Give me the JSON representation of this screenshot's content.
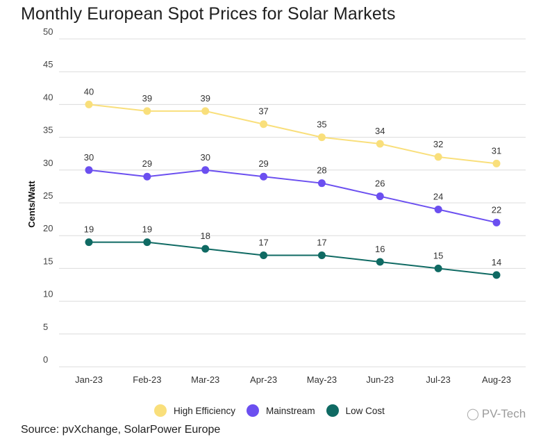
{
  "chart_data": {
    "type": "line",
    "title": "Monthly European Spot Prices for Solar Markets",
    "ylabel": "Cents/Watt",
    "xlabel": "",
    "categories": [
      "Jan-23",
      "Feb-23",
      "Mar-23",
      "Apr-23",
      "May-23",
      "Jun-23",
      "Jul-23",
      "Aug-23"
    ],
    "ylim": [
      0,
      50
    ],
    "yticks": [
      0,
      5,
      10,
      15,
      20,
      25,
      30,
      35,
      40,
      45,
      50
    ],
    "grid": true,
    "legend_position": "bottom",
    "series": [
      {
        "name": "High Efficiency",
        "color": "#f9df7b",
        "values": [
          40,
          39,
          39,
          37,
          35,
          34,
          32,
          31
        ]
      },
      {
        "name": "Mainstream",
        "color": "#6b4ff0",
        "values": [
          30,
          29,
          30,
          29,
          28,
          26,
          24,
          22
        ]
      },
      {
        "name": "Low Cost",
        "color": "#0f6a63",
        "values": [
          19,
          19,
          18,
          17,
          17,
          16,
          15,
          14
        ]
      }
    ],
    "source": "Source: pvXchange, SolarPower Europe"
  },
  "watermark": {
    "text": "PV-Tech",
    "icon": "wechat-icon"
  }
}
